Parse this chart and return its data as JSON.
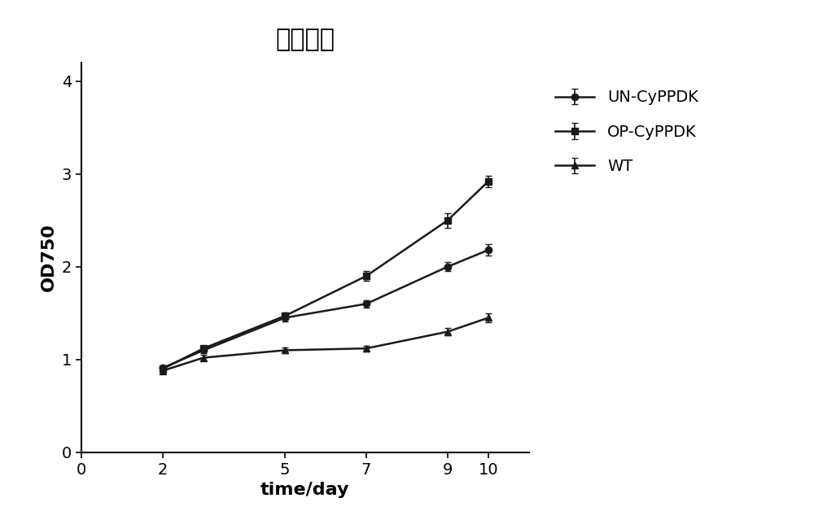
{
  "title": "生长曲线",
  "xlabel": "time/day",
  "ylabel": "OD750",
  "xlim": [
    0,
    11
  ],
  "ylim": [
    0,
    4.2
  ],
  "xticks": [
    0,
    2,
    5,
    7,
    9,
    10
  ],
  "yticks": [
    0,
    1,
    2,
    3,
    4
  ],
  "series": [
    {
      "label": "UN-CyPPDK",
      "x": [
        2,
        3,
        5,
        7,
        9,
        10
      ],
      "y": [
        0.91,
        1.1,
        1.45,
        1.6,
        2.0,
        2.18
      ],
      "yerr": [
        0.03,
        0.03,
        0.04,
        0.04,
        0.05,
        0.06
      ],
      "color": "#1a1a1a",
      "marker": "o",
      "linewidth": 1.8,
      "markersize": 6
    },
    {
      "label": "OP-CyPPDK",
      "x": [
        2,
        3,
        5,
        7,
        9,
        10
      ],
      "y": [
        0.9,
        1.12,
        1.47,
        1.9,
        2.5,
        2.92
      ],
      "yerr": [
        0.03,
        0.03,
        0.04,
        0.05,
        0.08,
        0.06
      ],
      "color": "#1a1a1a",
      "marker": "s",
      "linewidth": 1.8,
      "markersize": 6
    },
    {
      "label": "WT",
      "x": [
        2,
        3,
        5,
        7,
        9,
        10
      ],
      "y": [
        0.88,
        1.02,
        1.1,
        1.12,
        1.3,
        1.45
      ],
      "yerr": [
        0.02,
        0.03,
        0.03,
        0.03,
        0.04,
        0.05
      ],
      "color": "#1a1a1a",
      "marker": "^",
      "linewidth": 1.8,
      "markersize": 6
    }
  ],
  "title_fontsize": 22,
  "axis_label_fontsize": 16,
  "tick_fontsize": 14,
  "legend_fontsize": 14,
  "background_color": "#ffffff"
}
